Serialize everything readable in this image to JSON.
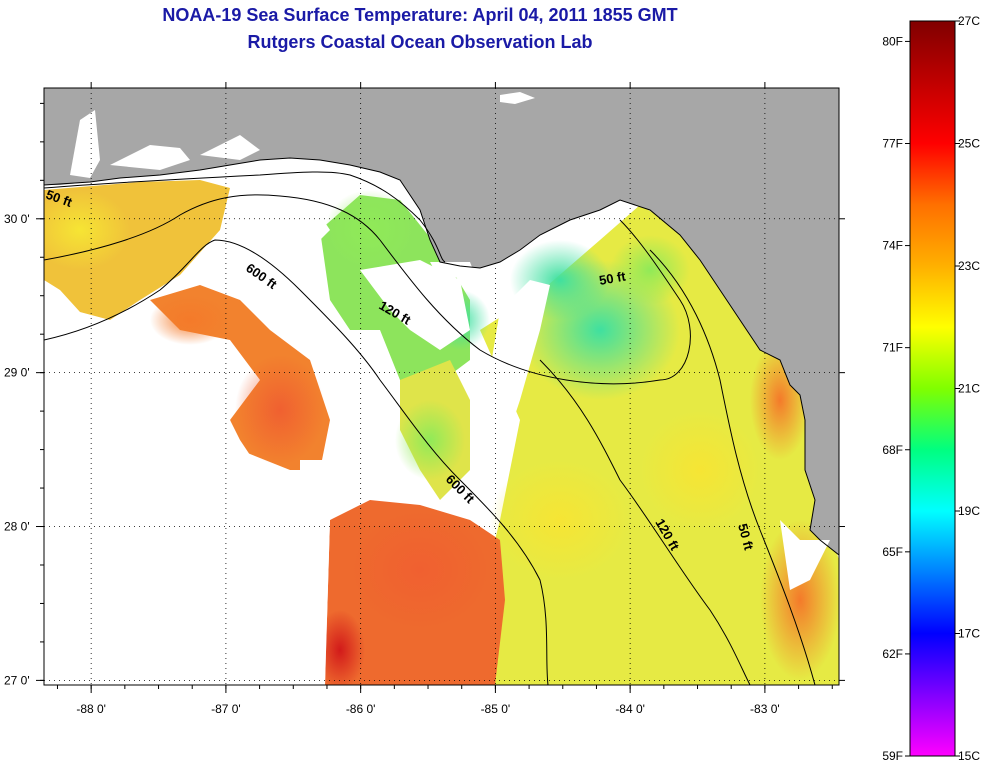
{
  "title": {
    "line1": "NOAA-19 Sea Surface Temperature:  April 04, 2011 1855 GMT",
    "line2": "Rutgers Coastal Ocean Observation Lab"
  },
  "map": {
    "lon_range": [
      -88.35,
      -82.45
    ],
    "lat_range": [
      26.97,
      30.85
    ],
    "lon_ticks": [
      {
        "value": -88,
        "label": "-88 0'"
      },
      {
        "value": -87,
        "label": "-87 0'"
      },
      {
        "value": -86,
        "label": "-86 0'"
      },
      {
        "value": -85,
        "label": "-85 0'"
      },
      {
        "value": -84,
        "label": "-84 0'"
      },
      {
        "value": -83,
        "label": "-83 0'"
      }
    ],
    "lat_ticks": [
      {
        "value": 27,
        "label": "27 0'"
      },
      {
        "value": 28,
        "label": "28 0'"
      },
      {
        "value": 29,
        "label": "29 0'"
      },
      {
        "value": 30,
        "label": "30 0'"
      }
    ],
    "grid": "dotted",
    "colors": {
      "land": "#a7a7a7",
      "no_data": "#ffffff",
      "frame": "#000000"
    },
    "isobaths": [
      {
        "label": "50 ft"
      },
      {
        "label": "600 ft"
      },
      {
        "label": "120 ft"
      },
      {
        "label": "50 ft"
      },
      {
        "label": "600 ft"
      },
      {
        "label": "120 ft"
      },
      {
        "label": "50 ft"
      }
    ]
  },
  "colorbar": {
    "range_c": [
      15,
      27
    ],
    "gradient": [
      "#ff00ff",
      "#8000ff",
      "#0000ff",
      "#0080ff",
      "#00ffff",
      "#00ff80",
      "#80ff00",
      "#ffff00",
      "#ffb000",
      "#ff7000",
      "#ff0000",
      "#c00000",
      "#800000"
    ],
    "celsius_ticks": [
      {
        "value": 27,
        "label": "27C"
      },
      {
        "value": 25,
        "label": "25C"
      },
      {
        "value": 23,
        "label": "23C"
      },
      {
        "value": 21,
        "label": "21C"
      },
      {
        "value": 19,
        "label": "19C"
      },
      {
        "value": 17,
        "label": "17C"
      },
      {
        "value": 15,
        "label": "15C"
      }
    ],
    "fahrenheit_ticks": [
      {
        "value": 80,
        "label": "80F"
      },
      {
        "value": 77,
        "label": "77F"
      },
      {
        "value": 74,
        "label": "74F"
      },
      {
        "value": 71,
        "label": "71F"
      },
      {
        "value": 68,
        "label": "68F"
      },
      {
        "value": 65,
        "label": "65F"
      },
      {
        "value": 62,
        "label": "62F"
      },
      {
        "value": 59,
        "label": "59F"
      }
    ]
  }
}
